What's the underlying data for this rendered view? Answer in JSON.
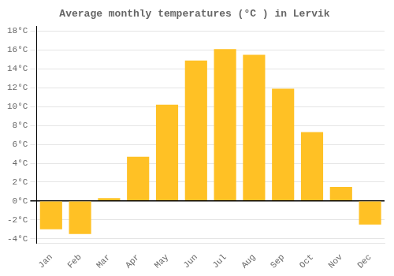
{
  "chart_data": {
    "type": "bar",
    "title": "Average monthly temperatures (°C ) in Lervik",
    "categories": [
      "Jan",
      "Feb",
      "Mar",
      "Apr",
      "May",
      "Jun",
      "Jul",
      "Aug",
      "Sep",
      "Oct",
      "Nov",
      "Dec"
    ],
    "values": [
      -3.0,
      -3.5,
      0.3,
      4.7,
      10.2,
      14.9,
      16.1,
      15.5,
      11.9,
      7.3,
      1.5,
      -2.5
    ],
    "color": "#FFC125",
    "ylim": [
      -4.5,
      18.5
    ],
    "yticks": [
      {
        "value": -4,
        "label": "-4°C"
      },
      {
        "value": -2,
        "label": "-2°C"
      },
      {
        "value": 0,
        "label": "0°C"
      },
      {
        "value": 2,
        "label": "2°C"
      },
      {
        "value": 4,
        "label": "4°C"
      },
      {
        "value": 6,
        "label": "6°C"
      },
      {
        "value": 8,
        "label": "8°C"
      },
      {
        "value": 10,
        "label": "10°C"
      },
      {
        "value": 12,
        "label": "12°C"
      },
      {
        "value": 14,
        "label": "14°C"
      },
      {
        "value": 16,
        "label": "16°C"
      },
      {
        "value": 18,
        "label": "18°C"
      }
    ],
    "grid": true
  }
}
